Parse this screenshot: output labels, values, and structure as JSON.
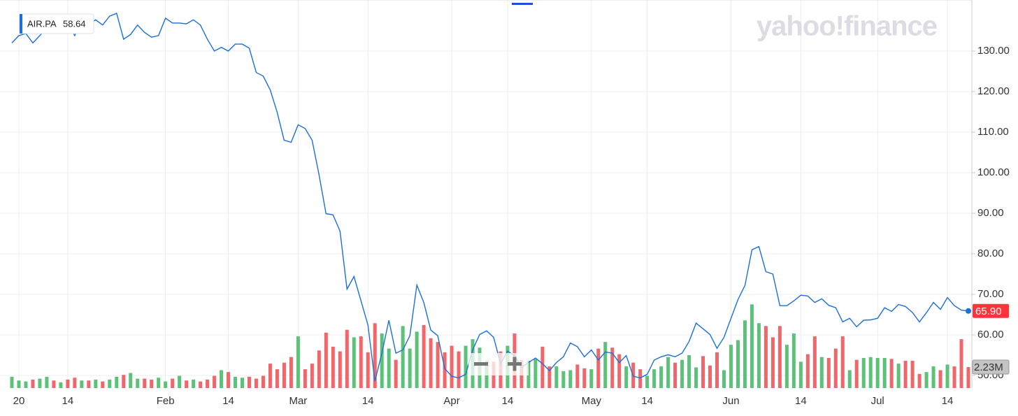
{
  "chart_data": {
    "type": "stock",
    "symbol": "AIR.PA",
    "tooltip_value": 58.64,
    "watermark": "yahoo!finance",
    "categories": [
      null,
      "20",
      null,
      null,
      null,
      null,
      null,
      null,
      "14",
      null,
      null,
      null,
      null,
      null,
      null,
      null,
      null,
      null,
      null,
      null,
      null,
      null,
      "Feb",
      null,
      null,
      null,
      null,
      null,
      null,
      null,
      null,
      "14",
      null,
      null,
      null,
      null,
      null,
      null,
      null,
      null,
      null,
      "Mar",
      null,
      null,
      null,
      null,
      null,
      null,
      null,
      null,
      null,
      "14",
      null,
      null,
      null,
      null,
      null,
      null,
      null,
      null,
      null,
      null,
      null,
      "Apr",
      null,
      null,
      null,
      null,
      null,
      null,
      null,
      "14",
      null,
      null,
      null,
      null,
      null,
      null,
      null,
      null,
      null,
      null,
      null,
      "May",
      null,
      null,
      null,
      null,
      null,
      null,
      null,
      "14",
      null,
      null,
      null,
      null,
      null,
      null,
      null,
      null,
      null,
      null,
      null,
      "Jun",
      null,
      null,
      null,
      null,
      null,
      null,
      null,
      null,
      null,
      "14",
      null,
      null,
      null,
      null,
      null,
      null,
      null,
      null,
      null,
      null,
      "Jul",
      null,
      null,
      null,
      null,
      null,
      null,
      null,
      null,
      null,
      "14",
      null,
      null,
      null
    ],
    "series": [
      {
        "name": "AIR.PA",
        "color": "#1c6fd8",
        "last_value_label": "65.90",
        "values": [
          132,
          133.8,
          134.3,
          132,
          133.8,
          135.8,
          135,
          137.2,
          136.9,
          133.8,
          137.6,
          136.4,
          137.7,
          136.4,
          138.6,
          139.3,
          132.9,
          134.1,
          136.4,
          134.6,
          133.4,
          133.8,
          138.1,
          136.9,
          136.9,
          136.7,
          137.7,
          136.4,
          132.9,
          130,
          130.9,
          130,
          131.7,
          131.7,
          130.7,
          124.7,
          123.8,
          120.4,
          114.9,
          108,
          107.5,
          111.8,
          110.9,
          108,
          99.4,
          89.9,
          89.6,
          85.6,
          71.3,
          74.4,
          68.4,
          62.4,
          48.6,
          55.5,
          63.6,
          55.5,
          56.3,
          59.8,
          72.3,
          68,
          61.2,
          59.8,
          51.7,
          49.8,
          49.4,
          50.3,
          56.3,
          60.1,
          61,
          59.4,
          52.9,
          56,
          54.9,
          52,
          53.2,
          54.3,
          52.9,
          51.2,
          53.2,
          54.6,
          58,
          57.1,
          54.6,
          56.3,
          53.8,
          55.8,
          55.5,
          53.2,
          54.9,
          49.8,
          49.4,
          50.3,
          53.8,
          54.6,
          55.1,
          54.6,
          55.5,
          58.4,
          62.9,
          61.5,
          60.1,
          56.7,
          59.4,
          64.1,
          68.7,
          72.2,
          81,
          81.8,
          75.6,
          75,
          67.2,
          67.2,
          68.4,
          69.8,
          69.6,
          68,
          68.9,
          67.3,
          66.7,
          63.2,
          64.1,
          62,
          63.6,
          63.7,
          64.1,
          66.7,
          65.8,
          67.5,
          67,
          65.5,
          63.2,
          65.5,
          68,
          66.3,
          69.2,
          67.2,
          66.1,
          65.9
        ]
      },
      {
        "name": "Volume",
        "axis": "y2",
        "up_color": "#5cc179",
        "down_color": "#f0676b",
        "last_value_label": "2.23M",
        "values": [
          1.2,
          0.8,
          0.7,
          0.9,
          1.0,
          1.2,
          0.8,
          0.6,
          0.9,
          1.1,
          0.8,
          0.8,
          0.9,
          0.7,
          0.9,
          1.2,
          1.4,
          1.6,
          1.0,
          1.0,
          0.9,
          1.1,
          0.7,
          1.0,
          1.3,
          0.8,
          0.9,
          0.7,
          0.9,
          1.3,
          1.9,
          1.7,
          1.2,
          1.1,
          1.2,
          1.0,
          1.3,
          2.6,
          2.0,
          2.7,
          3.3,
          5.5,
          2.0,
          2.6,
          4.0,
          5.9,
          4.4,
          3.9,
          6.2,
          5.4,
          5.5,
          3.8,
          6.9,
          5.8,
          4.2,
          3.0,
          6.6,
          4.2,
          6.0,
          6.7,
          5.3,
          4.9,
          3.8,
          4.5,
          3.9,
          4.5,
          5.2,
          4.3,
          2.9,
          2.8,
          3.9,
          4.5,
          5.8,
          3.0,
          2.9,
          3.1,
          4.4,
          2.3,
          2.3,
          1.8,
          1.9,
          2.5,
          2.1,
          2.0,
          4.2,
          4.9,
          4.3,
          3.6,
          2.3,
          2.7,
          2.0,
          1.3,
          2.0,
          2.3,
          3.3,
          2.7,
          3.0,
          3.5,
          2.2,
          3.4,
          2.4,
          3.8,
          1.9,
          4.6,
          5.1,
          7.2,
          8.9,
          6.9,
          6.6,
          5.4,
          6.6,
          4.6,
          5.8,
          2.8,
          3.6,
          5.5,
          3.3,
          3.2,
          4.2,
          5.5,
          1.9,
          3.0,
          3.2,
          3.3,
          3.2,
          3.2,
          3.1,
          2.6,
          2.9,
          2.9,
          1.5,
          1.7,
          2.3,
          1.9,
          2.5,
          2.3,
          5.2,
          2.23
        ]
      }
    ],
    "ylim": [
      46.9,
      141.2
    ],
    "yticks": [
      {
        "value": 50,
        "label": "50.00"
      },
      {
        "value": 60,
        "label": "60.00"
      },
      {
        "value": 70,
        "label": "70.00"
      },
      {
        "value": 80,
        "label": "80.00"
      },
      {
        "value": 90,
        "label": "90.00"
      },
      {
        "value": 100,
        "label": "100.00"
      },
      {
        "value": 110,
        "label": "110.00"
      },
      {
        "value": 120,
        "label": "120.00"
      },
      {
        "value": 130,
        "label": "130.00"
      }
    ],
    "y2lim": [
      0,
      40.7
    ],
    "grid": true
  }
}
